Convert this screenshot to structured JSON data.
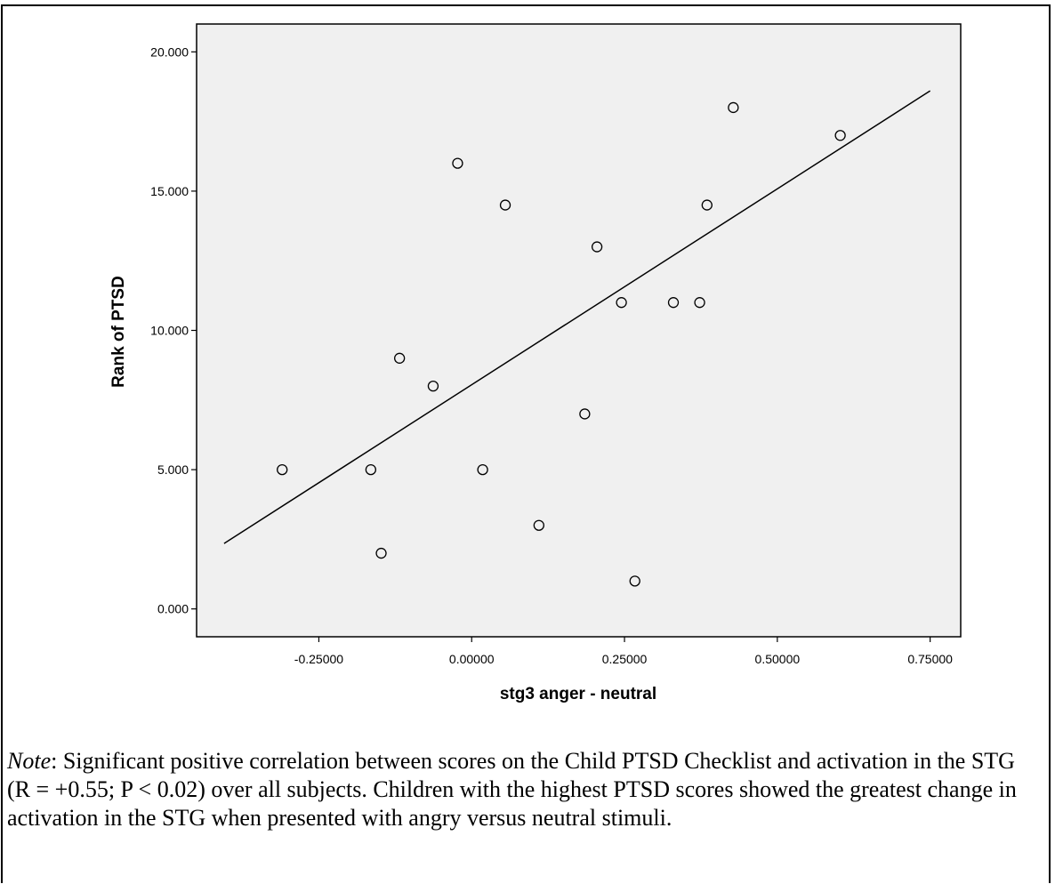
{
  "chart_data": {
    "type": "scatter",
    "xlabel": "stg3 anger - neutral",
    "ylabel": "Rank of PTSD",
    "xlim": [
      -0.45,
      0.8
    ],
    "ylim": [
      -1.0,
      21.0
    ],
    "x_ticks": [
      -0.25,
      0.0,
      0.25,
      0.5,
      0.75
    ],
    "x_tick_labels": [
      "-0.25000",
      "0.00000",
      "0.25000",
      "0.50000",
      "0.75000"
    ],
    "y_ticks": [
      0,
      5,
      10,
      15,
      20
    ],
    "y_tick_labels": [
      "0.000",
      "5.000",
      "10.000",
      "15.000",
      "20.000"
    ],
    "points": [
      {
        "x": -0.31,
        "y": 5
      },
      {
        "x": -0.165,
        "y": 5
      },
      {
        "x": -0.148,
        "y": 2
      },
      {
        "x": -0.118,
        "y": 9
      },
      {
        "x": -0.063,
        "y": 8
      },
      {
        "x": -0.023,
        "y": 16
      },
      {
        "x": 0.018,
        "y": 5
      },
      {
        "x": 0.055,
        "y": 14.5
      },
      {
        "x": 0.11,
        "y": 3
      },
      {
        "x": 0.185,
        "y": 7
      },
      {
        "x": 0.205,
        "y": 13
      },
      {
        "x": 0.245,
        "y": 11
      },
      {
        "x": 0.267,
        "y": 1
      },
      {
        "x": 0.33,
        "y": 11
      },
      {
        "x": 0.373,
        "y": 11
      },
      {
        "x": 0.385,
        "y": 14.5
      },
      {
        "x": 0.428,
        "y": 18
      },
      {
        "x": 0.603,
        "y": 17
      }
    ],
    "fit_line": {
      "x1": -0.405,
      "y1": 2.35,
      "x2": 0.75,
      "y2": 18.6
    },
    "plot_background": "#f0f0f0",
    "grid": false
  },
  "caption": {
    "note_label": "Note",
    "text": ": Significant positive correlation between scores on the Child PTSD Checklist and activation in the STG (R = +0.55; P < 0.02) over all subjects. Children with the highest PTSD scores showed the greatest change in activation in the STG when presented with angry versus neutral stimuli."
  }
}
